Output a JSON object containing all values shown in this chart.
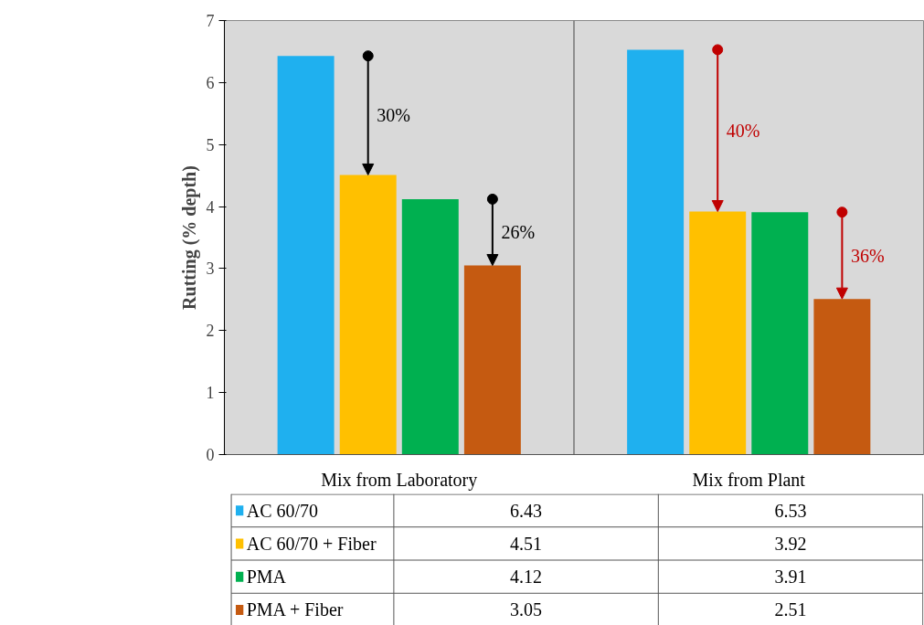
{
  "chart_data": {
    "type": "bar",
    "ylabel": "Rutting (% depth)",
    "categories": [
      "Mix from Laboratory",
      "Mix from Plant"
    ],
    "series": [
      {
        "name": "AC 60/70",
        "color": "#1fb0ef",
        "values": [
          6.43,
          6.53
        ]
      },
      {
        "name": "AC 60/70 + Fiber",
        "color": "#ffc000",
        "values": [
          4.51,
          3.92
        ]
      },
      {
        "name": "PMA",
        "color": "#00b050",
        "values": [
          4.12,
          3.91
        ]
      },
      {
        "name": "PMA + Fiber",
        "color": "#c55a11",
        "values": [
          3.05,
          2.51
        ]
      }
    ],
    "ylim": [
      0,
      7
    ],
    "yticks": [
      0,
      1,
      2,
      3,
      4,
      5,
      6,
      7
    ],
    "grid": false,
    "legend": "bottom",
    "data_labels": true,
    "annotations": [
      "30%",
      "26%",
      "40%",
      "36%"
    ]
  }
}
